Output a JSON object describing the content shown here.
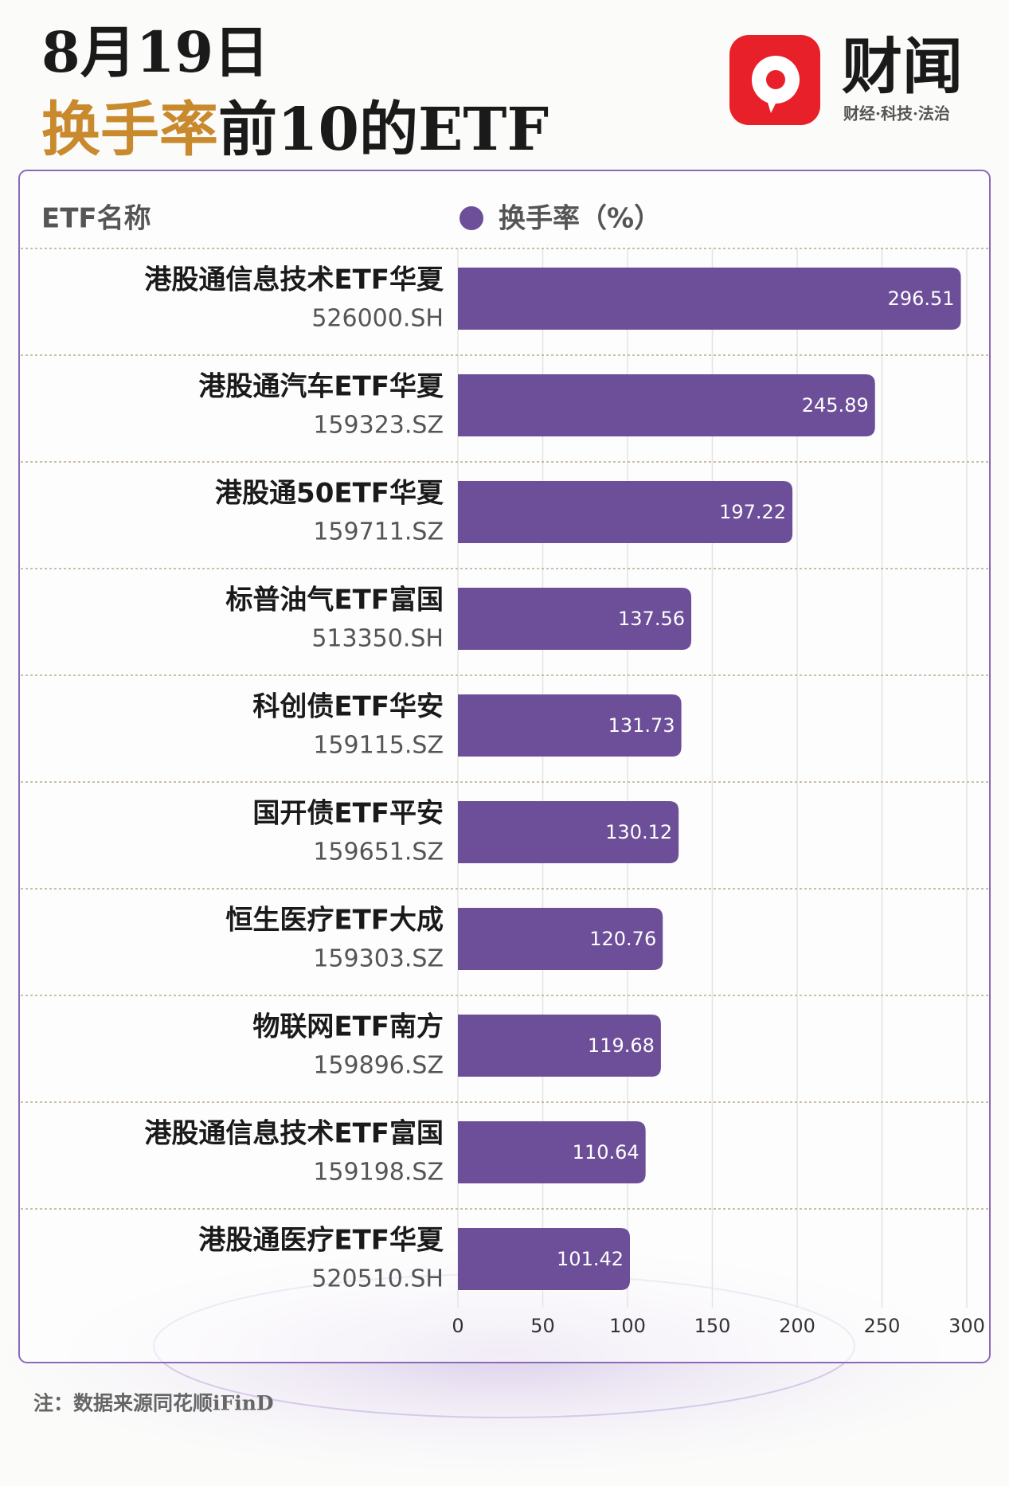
{
  "chart_data": {
    "type": "bar",
    "orientation": "horizontal",
    "title_date": "8月19日",
    "title_highlight": "换手率",
    "title_rest": "前10的ETF",
    "brand": "财闻",
    "brand_tagline": "财经·科技·法治",
    "category_header": "ETF名称",
    "categories": [
      "港股通信息技术ETF华夏",
      "港股通汽车ETF华夏",
      "港股通50ETF华夏",
      "标普油气ETF富国",
      "科创债ETF华安",
      "国开债ETF平安",
      "恒生医疗ETF大成",
      "物联网ETF南方",
      "港股通信息技术ETF富国",
      "港股通医疗ETF华夏"
    ],
    "codes": [
      "526000.SH",
      "159323.SZ",
      "159711.SZ",
      "513350.SH",
      "159115.SZ",
      "159651.SZ",
      "159303.SZ",
      "159896.SZ",
      "159198.SZ",
      "520510.SH"
    ],
    "series": [
      {
        "name": "换手率（%）",
        "color": "#6c4f98",
        "values": [
          296.51,
          245.89,
          197.22,
          137.56,
          131.73,
          130.12,
          120.76,
          119.68,
          110.64,
          101.42
        ]
      }
    ],
    "xlim": [
      0,
      300
    ],
    "xticks": [
      0,
      50,
      100,
      150,
      200,
      250,
      300
    ],
    "grid": true,
    "note": "注：数据来源同花顺iFinD"
  }
}
